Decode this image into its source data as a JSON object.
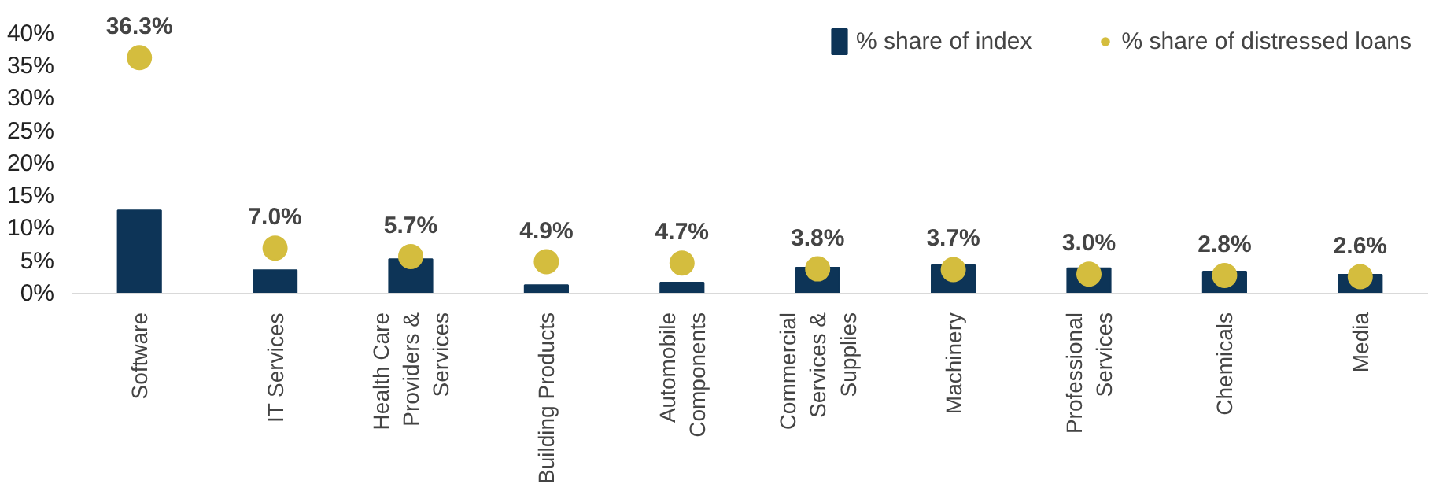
{
  "chart_data": {
    "type": "bar",
    "categories": [
      "Software",
      "IT Services",
      "Health Care\nProviders &\nServices",
      "Building Products",
      "Automobile\nComponents",
      "Commercial\nServices &\nSupplies",
      "Machinery",
      "Professional\nServices",
      "Chemicals",
      "Media"
    ],
    "series": [
      {
        "name": "% share of index",
        "type": "bar",
        "color": "#0d3457",
        "values": [
          12.8,
          3.6,
          5.3,
          1.3,
          1.7,
          4.0,
          4.4,
          3.9,
          3.4,
          2.9
        ]
      },
      {
        "name": "% share of distressed loans",
        "type": "scatter",
        "color": "#d4bd3e",
        "values": [
          36.3,
          7.0,
          5.7,
          4.9,
          4.7,
          3.8,
          3.7,
          3.0,
          2.8,
          2.6
        ],
        "value_labels": [
          "36.3%",
          "7.0%",
          "5.7%",
          "4.9%",
          "4.7%",
          "3.8%",
          "3.7%",
          "3.0%",
          "2.8%",
          "2.6%"
        ]
      }
    ],
    "ylim": [
      0,
      40
    ],
    "yticks": [
      {
        "value": 0,
        "label": "0%"
      },
      {
        "value": 5,
        "label": "5%"
      },
      {
        "value": 10,
        "label": "10%"
      },
      {
        "value": 15,
        "label": "15%"
      },
      {
        "value": 20,
        "label": "20%"
      },
      {
        "value": 25,
        "label": "25%"
      },
      {
        "value": 30,
        "label": "30%"
      },
      {
        "value": 35,
        "label": "35%"
      },
      {
        "value": 40,
        "label": "40%"
      }
    ],
    "legend": "top right",
    "grid": false,
    "marker": "circle"
  }
}
